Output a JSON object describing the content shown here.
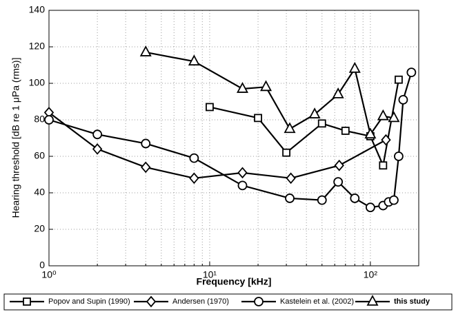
{
  "chart_data": {
    "type": "line",
    "xlabel": "Frequency [kHz]",
    "ylabel": "Hearing threshold [dB re 1 μPa (rms)]",
    "xscale": "log",
    "xlim": [
      1,
      200
    ],
    "ylim": [
      0,
      140
    ],
    "xticks": [
      {
        "value": 1,
        "label": "10⁰"
      },
      {
        "value": 10,
        "label": "10¹"
      },
      {
        "value": 100,
        "label": "10²"
      }
    ],
    "x_minor_ticks": [
      2,
      3,
      4,
      5,
      6,
      7,
      8,
      9,
      20,
      30,
      40,
      50,
      60,
      70,
      80,
      90,
      200
    ],
    "yticks": [
      0,
      20,
      40,
      60,
      80,
      100,
      120,
      140
    ],
    "grid": true,
    "legend": "bottom",
    "series": [
      {
        "name": "Popov and Supin (1990)",
        "color": "#000000",
        "marker": "square",
        "x": [
          10,
          20,
          30,
          50,
          70,
          100,
          120,
          150
        ],
        "values": [
          87,
          81,
          62,
          78,
          74,
          71,
          55,
          102
        ]
      },
      {
        "name": "Andersen (1970)",
        "color": "#000000",
        "marker": "diamond",
        "x": [
          1,
          2,
          4,
          8,
          16,
          32,
          64,
          125
        ],
        "values": [
          84,
          64,
          54,
          48,
          51,
          48,
          55,
          69
        ]
      },
      {
        "name": "Kastelein et al. (2002)",
        "color": "#000000",
        "marker": "circle",
        "x": [
          1,
          2,
          4,
          8,
          16,
          31.5,
          50,
          63,
          80,
          100,
          120,
          130,
          140,
          150,
          160,
          180
        ],
        "values": [
          80,
          72,
          67,
          59,
          44,
          37,
          36,
          46,
          37,
          32,
          33,
          35,
          36,
          60,
          91,
          106
        ]
      },
      {
        "name": "this study",
        "color": "#000000",
        "marker": "triangle",
        "x": [
          4,
          8,
          16,
          22.4,
          31.5,
          45,
          63,
          80,
          100,
          120,
          140
        ],
        "values": [
          117,
          112,
          97,
          98,
          75,
          83,
          94,
          108,
          72,
          82,
          81
        ]
      }
    ]
  }
}
